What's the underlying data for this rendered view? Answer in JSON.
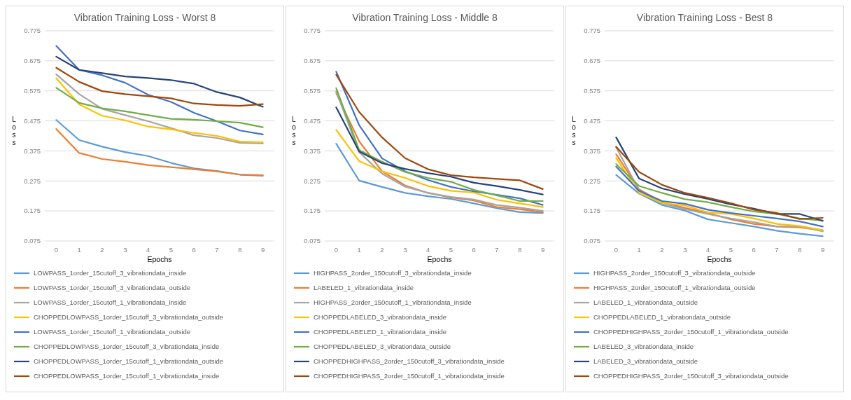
{
  "chart_data": [
    {
      "type": "line",
      "title": "Vibration Training Loss - Worst 8",
      "xlabel": "Epochs",
      "ylabel": "Loss",
      "x": [
        0,
        1,
        2,
        3,
        4,
        5,
        6,
        7,
        8,
        9
      ],
      "ylim": [
        0.075,
        0.775
      ],
      "yticks": [
        0.075,
        0.175,
        0.275,
        0.375,
        0.475,
        0.575,
        0.675,
        0.775
      ],
      "xlim": [
        -0.5,
        9.5
      ],
      "xticks": [
        0,
        1,
        2,
        3,
        4,
        5,
        6,
        7,
        8,
        9
      ],
      "grid": "y",
      "legend": "bottom",
      "marker": "none",
      "series": [
        {
          "name": "LOWPASS_1order_15cutoff_3_vibrationdata_inside",
          "color": "#5b9bd5",
          "values": [
            0.478,
            0.411,
            0.389,
            0.371,
            0.358,
            0.335,
            0.317,
            0.308,
            0.296,
            0.292
          ]
        },
        {
          "name": "LOWPASS_1order_15cutoff_3_vibrationdata_outside",
          "color": "#ed7d31",
          "values": [
            0.448,
            0.368,
            0.348,
            0.339,
            0.328,
            0.321,
            0.314,
            0.307,
            0.296,
            0.294
          ]
        },
        {
          "name": "LOWPASS_1order_15cutoff_1_vibrationdata_inside",
          "color": "#a5a5a5",
          "values": [
            0.63,
            0.564,
            0.515,
            0.494,
            0.474,
            0.451,
            0.427,
            0.418,
            0.402,
            0.4
          ]
        },
        {
          "name": "CHOPPEDLOWPASS_1order_15cutoff_3_vibrationdata_outside",
          "color": "#ffc000",
          "values": [
            0.617,
            0.53,
            0.492,
            0.477,
            0.456,
            0.447,
            0.435,
            0.425,
            0.406,
            0.404
          ]
        },
        {
          "name": "LOWPASS_1order_15cutoff_1_vibrationdata_outside",
          "color": "#4472c4",
          "values": [
            0.725,
            0.645,
            0.627,
            0.602,
            0.562,
            0.538,
            0.502,
            0.474,
            0.443,
            0.43
          ]
        },
        {
          "name": "CHOPPEDLOWPASS_1order_15cutoff_3_vibrationdata_inside",
          "color": "#70ad47",
          "values": [
            0.585,
            0.535,
            0.517,
            0.507,
            0.494,
            0.482,
            0.479,
            0.474,
            0.469,
            0.454
          ]
        },
        {
          "name": "CHOPPEDLOWPASS_1order_15cutoff_1_vibrationdata_outside",
          "color": "#264478",
          "values": [
            0.689,
            0.645,
            0.634,
            0.623,
            0.618,
            0.611,
            0.599,
            0.571,
            0.553,
            0.522
          ]
        },
        {
          "name": "CHOPPEDLOWPASS_1order_15cutoff_1_vibrationdata_inside",
          "color": "#9e480e",
          "values": [
            0.652,
            0.605,
            0.574,
            0.564,
            0.557,
            0.55,
            0.533,
            0.528,
            0.525,
            0.531
          ]
        }
      ]
    },
    {
      "type": "line",
      "title": "Vibration Training Loss - Middle 8",
      "xlabel": "Epochs",
      "ylabel": "Loss",
      "x": [
        0,
        1,
        2,
        3,
        4,
        5,
        6,
        7,
        8,
        9
      ],
      "ylim": [
        0.075,
        0.775
      ],
      "yticks": [
        0.075,
        0.175,
        0.275,
        0.375,
        0.475,
        0.575,
        0.675,
        0.775
      ],
      "xlim": [
        -0.5,
        9.5
      ],
      "xticks": [
        0,
        1,
        2,
        3,
        4,
        5,
        6,
        7,
        8,
        9
      ],
      "grid": "y",
      "legend": "bottom",
      "marker": "none",
      "series": [
        {
          "name": "HIGHPASS_2order_150cutoff_3_vibrationdata_inside",
          "color": "#5b9bd5",
          "values": [
            0.399,
            0.276,
            0.255,
            0.235,
            0.224,
            0.215,
            0.2,
            0.184,
            0.171,
            0.168
          ]
        },
        {
          "name": "LABELED_1_vibrationdata_inside",
          "color": "#ed7d31",
          "values": [
            0.567,
            0.407,
            0.307,
            0.26,
            0.235,
            0.22,
            0.21,
            0.188,
            0.181,
            0.171
          ]
        },
        {
          "name": "HIGHPASS_2order_150cutoff_1_vibrationdata_inside",
          "color": "#a5a5a5",
          "values": [
            0.573,
            0.371,
            0.299,
            0.256,
            0.235,
            0.222,
            0.213,
            0.195,
            0.186,
            0.175
          ]
        },
        {
          "name": "CHOPPEDLABELED_3_vibrationdata_inside",
          "color": "#ffc000",
          "values": [
            0.445,
            0.341,
            0.307,
            0.285,
            0.258,
            0.242,
            0.236,
            0.212,
            0.2,
            0.188
          ]
        },
        {
          "name": "CHOPPEDLABELED_1_vibrationdata_inside",
          "color": "#4472c4",
          "values": [
            0.639,
            0.461,
            0.35,
            0.307,
            0.278,
            0.255,
            0.24,
            0.229,
            0.217,
            0.195
          ]
        },
        {
          "name": "CHOPPEDLABELED_3_vibrationdata_outside",
          "color": "#70ad47",
          "values": [
            0.584,
            0.378,
            0.339,
            0.305,
            0.285,
            0.272,
            0.245,
            0.227,
            0.208,
            0.208
          ]
        },
        {
          "name": "CHOPPEDHIGHPASS_2order_150cutoff_3_vibrationdata_inside",
          "color": "#264478",
          "values": [
            0.52,
            0.373,
            0.334,
            0.315,
            0.301,
            0.289,
            0.269,
            0.258,
            0.245,
            0.23
          ]
        },
        {
          "name": "CHOPPEDHIGHPASS_2order_150cutoff_1_vibrationdata_inside",
          "color": "#9e480e",
          "values": [
            0.629,
            0.505,
            0.42,
            0.351,
            0.314,
            0.294,
            0.287,
            0.282,
            0.277,
            0.248
          ]
        }
      ]
    },
    {
      "type": "line",
      "title": "Vibration Training Loss - Best 8",
      "xlabel": "Epochs",
      "ylabel": "Loss",
      "x": [
        0,
        1,
        2,
        3,
        4,
        5,
        6,
        7,
        8,
        9
      ],
      "ylim": [
        0.075,
        0.775
      ],
      "yticks": [
        0.075,
        0.175,
        0.275,
        0.375,
        0.475,
        0.575,
        0.675,
        0.775
      ],
      "xlim": [
        -0.5,
        9.5
      ],
      "xticks": [
        0,
        1,
        2,
        3,
        4,
        5,
        6,
        7,
        8,
        9
      ],
      "grid": "y",
      "legend": "bottom",
      "marker": "none",
      "series": [
        {
          "name": "HIGHPASS_2order_150cutoff_3_vibrationdata_outside",
          "color": "#5b9bd5",
          "values": [
            0.295,
            0.233,
            0.195,
            0.176,
            0.147,
            0.135,
            0.123,
            0.109,
            0.099,
            0.091
          ]
        },
        {
          "name": "HIGHPASS_2order_150cutoff_1_vibrationdata_outside",
          "color": "#ed7d31",
          "values": [
            0.364,
            0.247,
            0.204,
            0.185,
            0.168,
            0.147,
            0.132,
            0.123,
            0.12,
            0.111
          ]
        },
        {
          "name": "LABELED_1_vibrationdata_outside",
          "color": "#a5a5a5",
          "values": [
            0.387,
            0.244,
            0.201,
            0.181,
            0.165,
            0.15,
            0.138,
            0.123,
            0.123,
            0.107
          ]
        },
        {
          "name": "CHOPPEDLABELED_1_vibrationdata_outside",
          "color": "#ffc000",
          "values": [
            0.351,
            0.235,
            0.202,
            0.193,
            0.17,
            0.165,
            0.15,
            0.132,
            0.125,
            0.111
          ]
        },
        {
          "name": "CHOPPEDHIGHPASS_2order_150cutoff_1_vibrationdata_outside",
          "color": "#4472c4",
          "values": [
            0.323,
            0.242,
            0.208,
            0.199,
            0.179,
            0.168,
            0.159,
            0.15,
            0.14,
            0.123
          ]
        },
        {
          "name": "LABELED_3_vibrationdata_inside",
          "color": "#70ad47",
          "values": [
            0.331,
            0.258,
            0.235,
            0.214,
            0.204,
            0.188,
            0.173,
            0.165,
            0.15,
            0.143
          ]
        },
        {
          "name": "LABELED_3_vibrationdata_outside",
          "color": "#264478",
          "values": [
            0.42,
            0.283,
            0.25,
            0.231,
            0.215,
            0.197,
            0.183,
            0.165,
            0.165,
            0.142
          ]
        },
        {
          "name": "CHOPPEDHIGHPASS_2order_150cutoff_3_vibrationdata_outside",
          "color": "#9e480e",
          "values": [
            0.389,
            0.305,
            0.262,
            0.235,
            0.219,
            0.201,
            0.179,
            0.168,
            0.148,
            0.152
          ]
        }
      ]
    }
  ]
}
